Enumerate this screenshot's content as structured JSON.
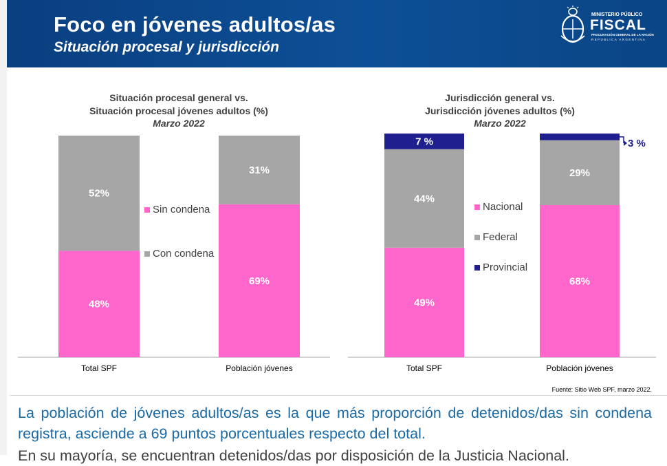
{
  "header": {
    "title": "Foco en jóvenes adultos/as",
    "subtitle": "Situación procesal y jurisdicción",
    "logo": {
      "line1": "MINISTERIO PÚBLICO",
      "line2": "FISCAL",
      "line3": "PROCURACIÓN GENERAL DE LA NACIÓN",
      "line4": "REPÚBLICA ARGENTINA",
      "icon": "coat-of-arms-icon"
    },
    "colors": {
      "primary": "#0d4f96"
    }
  },
  "chart_data": [
    {
      "type": "bar",
      "stacked": true,
      "title": "Situación procesal general  vs.",
      "title2": "Situación procesal jóvenes adultos (%)",
      "date": "Marzo 2022",
      "categories": [
        "Total SPF",
        "Población jóvenes"
      ],
      "series": [
        {
          "name": "Sin condena",
          "color": "#ff66cc",
          "values": [
            48,
            69
          ],
          "labels": [
            "48%",
            "69%"
          ]
        },
        {
          "name": "Con condena",
          "color": "#a6a6a6",
          "values": [
            52,
            31
          ],
          "labels": [
            "52%",
            "31%"
          ]
        }
      ],
      "ylim": [
        0,
        100
      ],
      "legend": "center"
    },
    {
      "type": "bar",
      "stacked": true,
      "title": "Jurisdicción general vs.",
      "title2": "Jurisdicción jóvenes adultos (%)",
      "date": "Marzo 2022",
      "categories": [
        "Total SPF",
        "Población jóvenes"
      ],
      "series": [
        {
          "name": "Nacional",
          "color": "#ff66cc",
          "values": [
            49,
            68
          ],
          "labels": [
            "49%",
            "68%"
          ]
        },
        {
          "name": "Federal",
          "color": "#a6a6a6",
          "values": [
            44,
            29
          ],
          "labels": [
            "44%",
            "29%"
          ]
        },
        {
          "name": "Provincial",
          "color": "#1f1f8f",
          "values": [
            7,
            3
          ],
          "labels": [
            "7  %",
            "3  %"
          ]
        }
      ],
      "ylim": [
        0,
        100
      ],
      "legend": "center"
    }
  ],
  "source": "Fuente: Sitio Web SPF, marzo 2022.",
  "text": {
    "paragraph1": "La población de jóvenes adultos/as es la que más proporción de detenidos/das sin condena registra, asciende a 69 puntos porcentuales respecto del total.",
    "paragraph2": "En su mayoría, se encuentran detenidos/das por disposición de la Justicia Nacional."
  }
}
